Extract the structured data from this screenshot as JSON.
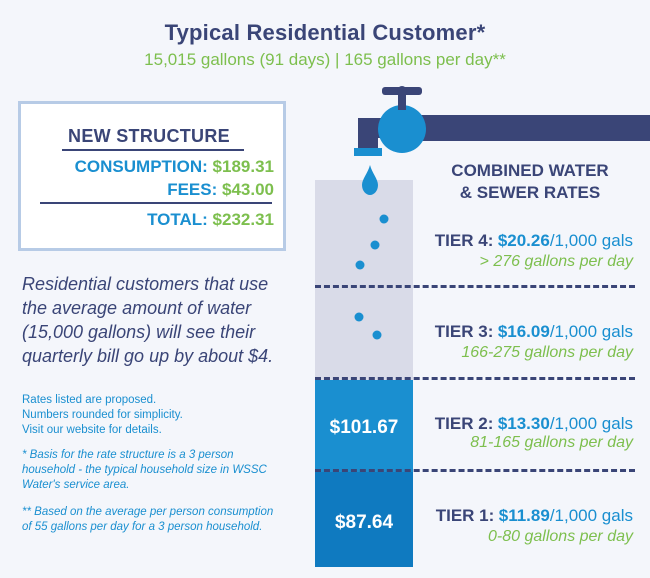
{
  "header": {
    "title": "Typical Residential Customer*",
    "subtitle": "15,015 gallons (91 days) | 165 gallons per day**"
  },
  "structure": {
    "heading": "NEW STRUCTURE",
    "consumption_label": "CONSUMPTION:",
    "consumption_value": "$189.31",
    "fees_label": "FEES:",
    "fees_value": "$43.00",
    "total_label": "TOTAL:",
    "total_value": "$232.31"
  },
  "body_text": "Residential customers that use the average amount of water (15,000 gallons) will see their quarterly bill go up by about $4.",
  "notes": {
    "general": "Rates listed are proposed.\nNumbers rounded for simplicity.\nVisit our website for details.",
    "basis": "* Basis for the rate structure is a 3 person household - the typical household size in WSSC Water's service area.",
    "average": "** Based on the average per person consumption of 55 gallons per day for a 3 person household."
  },
  "rates_heading": "COMBINED WATER\n& SEWER RATES",
  "column_values": {
    "tier2": "$101.67",
    "tier1": "$87.64"
  },
  "tiers": [
    {
      "name": "TIER 1:",
      "rate": "$11.89",
      "unit": "/1,000 gals",
      "range": "0-80 gallons per day"
    },
    {
      "name": "TIER 2:",
      "rate": "$13.30",
      "unit": "/1,000 gals",
      "range": "81-165 gallons per day"
    },
    {
      "name": "TIER 3:",
      "rate": "$16.09",
      "unit": "/1,000 gals",
      "range": "166-275 gallons per day"
    },
    {
      "name": "TIER 4:",
      "rate": "$20.26",
      "unit": "/1,000 gals",
      "range": "> 276 gallons per day"
    }
  ],
  "colors": {
    "navy": "#3a4577",
    "blue": "#1a8fd0",
    "green": "#7dbf4e",
    "gray_column": "#d9dbe8"
  },
  "icons": [
    "faucet-icon",
    "water-drop-icon"
  ]
}
